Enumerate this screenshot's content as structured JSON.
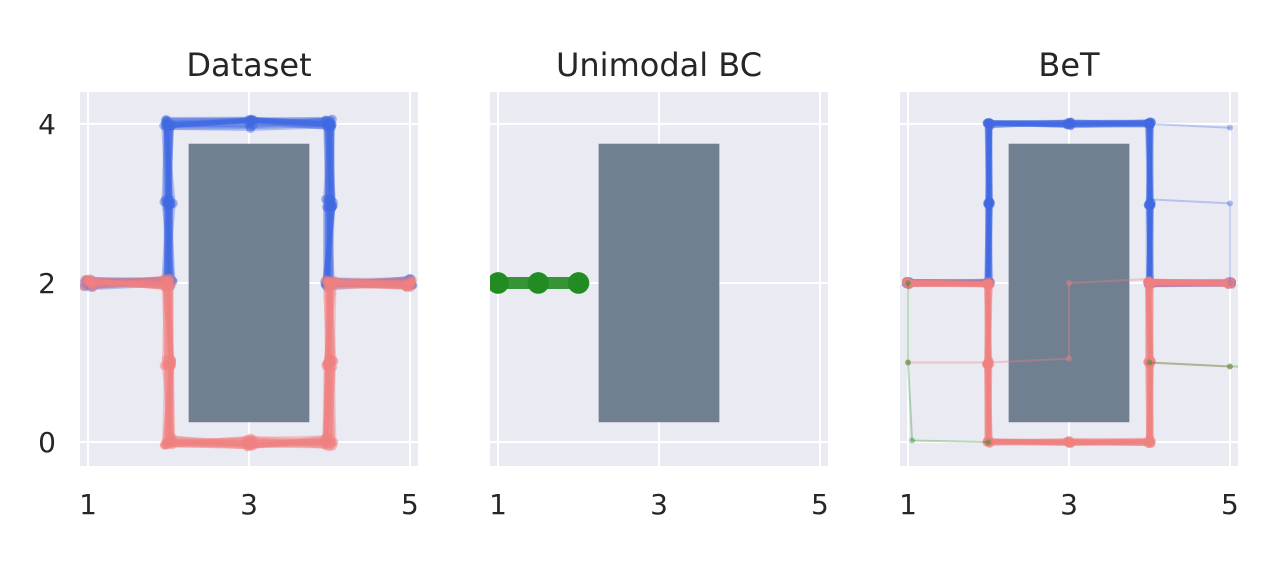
{
  "chart_data": [
    {
      "type": "line",
      "title": "Dataset",
      "xlim": [
        0.9,
        5.1
      ],
      "ylim": [
        -0.3,
        4.4
      ],
      "xticks": [
        1,
        3,
        5
      ],
      "yticks": [
        0,
        2,
        4
      ],
      "show_yticks": true,
      "grid": true,
      "obstacle": {
        "x": [
          2.25,
          3.75
        ],
        "y": [
          0.25,
          3.75
        ],
        "color": "#708090"
      },
      "series": [
        {
          "color": "#4169e1",
          "alpha": 0.35,
          "width": 5,
          "x": [
            1,
            2,
            2,
            2,
            3,
            4,
            4,
            4,
            5
          ],
          "y": [
            2,
            2,
            3,
            4,
            4,
            4,
            3,
            2,
            2
          ],
          "repeat": 14,
          "jitter": 0.06
        },
        {
          "color": "#f08080",
          "alpha": 0.35,
          "width": 5,
          "x": [
            1,
            2,
            2,
            2,
            3,
            4,
            4,
            4,
            5
          ],
          "y": [
            2,
            2,
            1,
            0,
            0,
            0,
            1,
            2,
            2
          ],
          "repeat": 14,
          "jitter": 0.06
        }
      ]
    },
    {
      "type": "line",
      "title": "Unimodal BC",
      "xlim": [
        0.9,
        5.1
      ],
      "ylim": [
        -0.3,
        4.4
      ],
      "xticks": [
        1,
        3,
        5
      ],
      "yticks": [
        0,
        2,
        4
      ],
      "show_yticks": false,
      "grid": true,
      "obstacle": {
        "x": [
          2.25,
          3.75
        ],
        "y": [
          0.25,
          3.75
        ],
        "color": "#708090"
      },
      "series": [
        {
          "color": "#228b22",
          "alpha": 0.9,
          "width": 12,
          "x": [
            1,
            1.5,
            2
          ],
          "y": [
            2,
            2,
            2
          ],
          "repeat": 1,
          "jitter": 0
        }
      ]
    },
    {
      "type": "line",
      "title": "BeT",
      "xlim": [
        0.9,
        5.1
      ],
      "ylim": [
        -0.3,
        4.4
      ],
      "xticks": [
        1,
        3,
        5
      ],
      "yticks": [
        0,
        2,
        4
      ],
      "show_yticks": false,
      "grid": true,
      "obstacle": {
        "x": [
          2.25,
          3.75
        ],
        "y": [
          0.25,
          3.75
        ],
        "color": "#708090"
      },
      "series": [
        {
          "color": "#4169e1",
          "alpha": 0.35,
          "width": 5,
          "x": [
            1,
            2,
            2,
            2,
            3,
            4,
            4,
            4,
            5
          ],
          "y": [
            2,
            2,
            3,
            4,
            4,
            4,
            3,
            2,
            2
          ],
          "repeat": 12,
          "jitter": 0.025
        },
        {
          "color": "#f08080",
          "alpha": 0.35,
          "width": 5,
          "x": [
            1,
            2,
            2,
            2,
            3,
            4,
            4,
            4,
            5
          ],
          "y": [
            2,
            2,
            1,
            0,
            0,
            0,
            1,
            2,
            2
          ],
          "repeat": 12,
          "jitter": 0.025
        },
        {
          "color": "#4169e1",
          "alpha": 0.3,
          "width": 2,
          "x": [
            4,
            5
          ],
          "y": [
            4,
            3.95
          ],
          "repeat": 1,
          "jitter": 0
        },
        {
          "color": "#4169e1",
          "alpha": 0.3,
          "width": 2,
          "x": [
            4,
            5,
            5
          ],
          "y": [
            3.05,
            3,
            2
          ],
          "repeat": 1,
          "jitter": 0
        },
        {
          "color": "#f08080",
          "alpha": 0.35,
          "width": 2,
          "x": [
            1,
            2,
            3,
            3,
            4,
            5
          ],
          "y": [
            1,
            1,
            1.05,
            2,
            2.05,
            2
          ],
          "repeat": 1,
          "jitter": 0
        },
        {
          "color": "#f08080",
          "alpha": 0.35,
          "width": 2,
          "x": [
            4,
            5
          ],
          "y": [
            1,
            0.95
          ],
          "repeat": 1,
          "jitter": 0
        },
        {
          "color": "#228b22",
          "alpha": 0.3,
          "width": 2,
          "x": [
            1,
            1,
            1.05,
            2
          ],
          "y": [
            2,
            1,
            0.02,
            0
          ],
          "repeat": 1,
          "jitter": 0
        },
        {
          "color": "#228b22",
          "alpha": 0.3,
          "width": 2,
          "x": [
            4,
            5,
            5.2
          ],
          "y": [
            1,
            0.95,
            0.95
          ],
          "repeat": 1,
          "jitter": 0
        }
      ]
    }
  ]
}
